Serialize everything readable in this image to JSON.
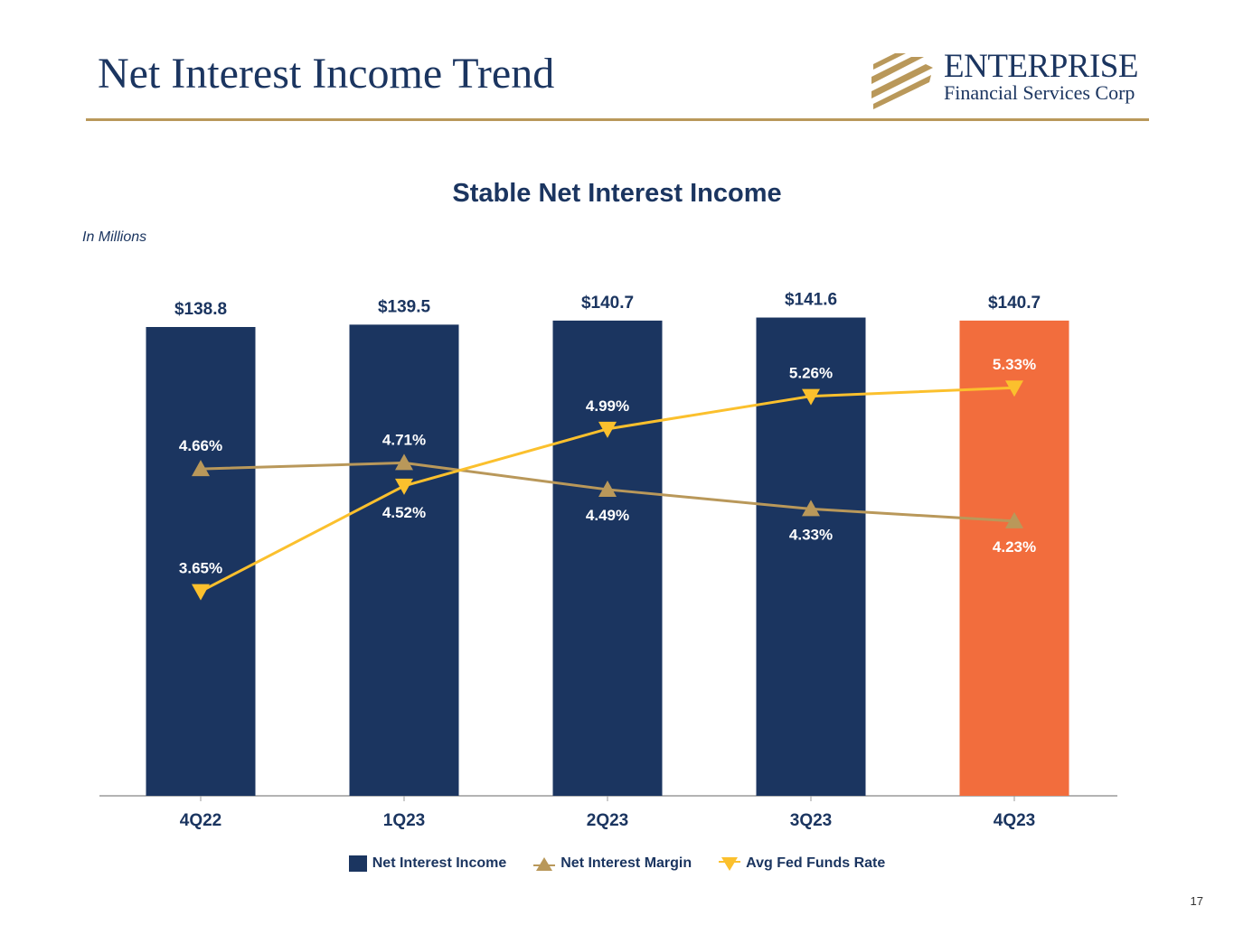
{
  "slide": {
    "title": "Net Interest Income Trend",
    "page_number": "17"
  },
  "logo": {
    "name": "ENTERPRISE",
    "subtitle": "Financial Services Corp"
  },
  "colors": {
    "navy": "#1b3560",
    "gold": "#b9985a",
    "orange": "#f26d3d",
    "yellow": "#fbc02d"
  },
  "chart_data": {
    "type": "bar",
    "title": "Stable Net Interest Income",
    "units_note": "In Millions",
    "categories": [
      "4Q22",
      "1Q23",
      "2Q23",
      "3Q23",
      "4Q23"
    ],
    "series": [
      {
        "name": "Net Interest Income",
        "type": "bar",
        "values": [
          138.8,
          139.5,
          140.7,
          141.6,
          140.7
        ],
        "labels": [
          "$138.8",
          "$139.5",
          "$140.7",
          "$141.6",
          "$140.7"
        ],
        "color": "#1b3560",
        "highlight_color": "#f26d3d",
        "highlight_index": 4
      },
      {
        "name": "Net Interest Margin",
        "type": "line",
        "marker": "triangle-up",
        "values": [
          4.66,
          4.71,
          4.49,
          4.33,
          4.23
        ],
        "labels": [
          "4.66%",
          "4.71%",
          "4.49%",
          "4.33%",
          "4.23%"
        ],
        "color": "#b9985a"
      },
      {
        "name": "Avg Fed Funds Rate",
        "type": "line",
        "marker": "triangle-down",
        "values": [
          3.65,
          4.52,
          4.99,
          5.26,
          5.33
        ],
        "labels": [
          "3.65%",
          "4.52%",
          "4.99%",
          "5.26%",
          "5.33%"
        ],
        "color": "#fbc02d"
      }
    ],
    "legend_position": "bottom",
    "grid": false
  }
}
